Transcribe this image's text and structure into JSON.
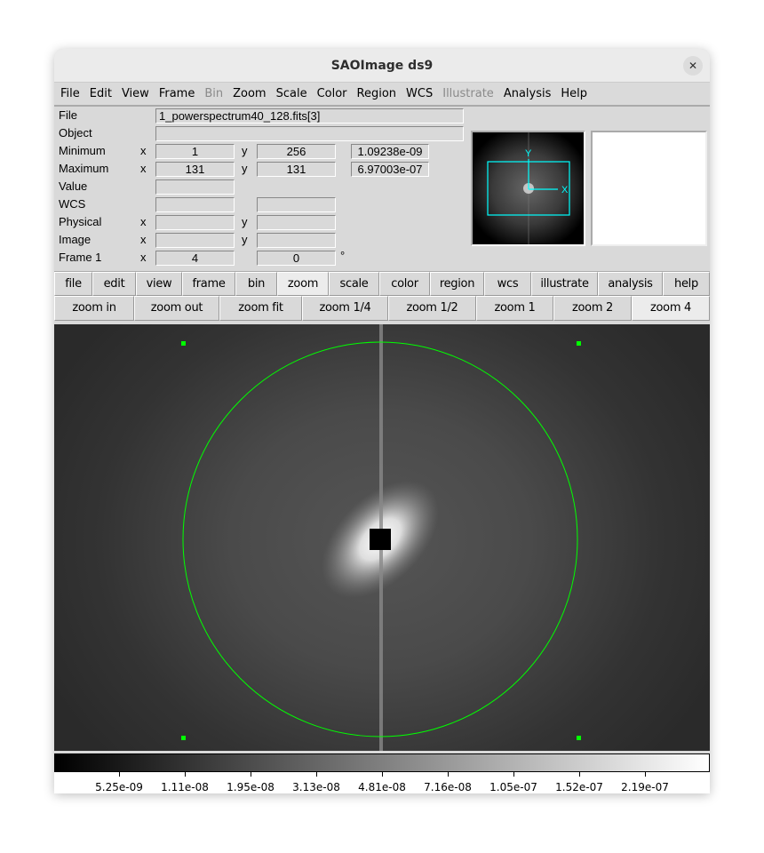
{
  "window": {
    "title": "SAOImage ds9",
    "close_icon": "close-icon"
  },
  "menu": [
    {
      "label": "File"
    },
    {
      "label": "Edit"
    },
    {
      "label": "View"
    },
    {
      "label": "Frame"
    },
    {
      "label": "Bin",
      "disabled": true
    },
    {
      "label": "Zoom"
    },
    {
      "label": "Scale"
    },
    {
      "label": "Color"
    },
    {
      "label": "Region"
    },
    {
      "label": "WCS"
    },
    {
      "label": "Illustrate",
      "disabled": true
    },
    {
      "label": "Analysis"
    },
    {
      "label": "Help"
    }
  ],
  "info": {
    "file_label": "File",
    "file": "1_powerspectrum40_128.fits[3]",
    "object_label": "Object",
    "object": "",
    "minimum_label": "Minimum",
    "min_x": "1",
    "min_y": "256",
    "min_val": "1.09238e-09",
    "maximum_label": "Maximum",
    "max_x": "131",
    "max_y": "131",
    "max_val": "6.97003e-07",
    "value_label": "Value",
    "wcs_label": "WCS",
    "physical_label": "Physical",
    "image_label": "Image",
    "frame_label": "Frame 1",
    "frame_zoom": "4",
    "frame_angle": "0",
    "degree": "°",
    "x": "x",
    "y": "y"
  },
  "panner": {
    "x_axis": "X",
    "y_axis": "Y",
    "color": "#00ffff"
  },
  "buttons": [
    "file",
    "edit",
    "view",
    "frame",
    "bin",
    "zoom",
    "scale",
    "color",
    "region",
    "wcs",
    "illustrate",
    "analysis",
    "help"
  ],
  "active_button": "zoom",
  "zoom_buttons": [
    "zoom in",
    "zoom out",
    "zoom fit",
    "zoom 1/4",
    "zoom 1/2",
    "zoom 1",
    "zoom 2",
    "zoom 4"
  ],
  "active_zoom": "zoom 4",
  "region": {
    "shape": "circle",
    "color": "#00ff00",
    "selected": true
  },
  "colorbar": {
    "colormap": "grey",
    "ticks": [
      "5.25e-09",
      "1.11e-08",
      "1.95e-08",
      "3.13e-08",
      "4.81e-08",
      "7.16e-08",
      "1.05e-07",
      "1.52e-07",
      "2.19e-07"
    ]
  }
}
